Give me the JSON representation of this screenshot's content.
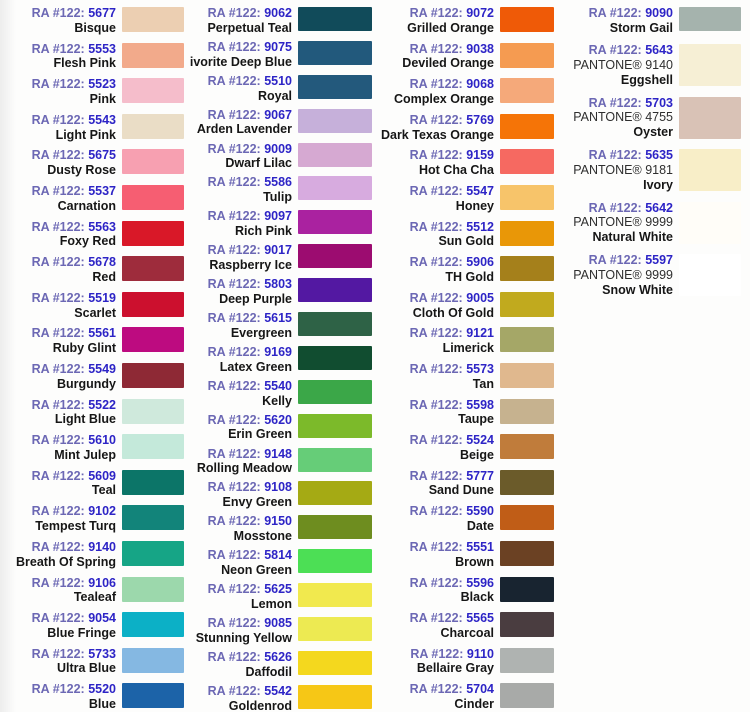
{
  "labels": {
    "ra_prefix": "RA #122:"
  },
  "text_colors": {
    "prefix": "#6c68b4",
    "number": "#2d24c6",
    "name": "#161616",
    "pantone": "#2e2e2e"
  },
  "columns": [
    {
      "id": "column-1",
      "rows": [
        {
          "number": "5677",
          "name": "Bisque",
          "swatch": "#eccfb2"
        },
        {
          "number": "5553",
          "name": "Flesh Pink",
          "swatch": "#f2aa8b"
        },
        {
          "number": "5523",
          "name": "Pink",
          "swatch": "#f5bdcb"
        },
        {
          "number": "5543",
          "name": "Light Pink",
          "swatch": "#eaddc6"
        },
        {
          "number": "5675",
          "name": "Dusty Rose",
          "swatch": "#f7a0b1"
        },
        {
          "number": "5537",
          "name": "Carnation",
          "swatch": "#f65e72"
        },
        {
          "number": "5563",
          "name": "Foxy Red",
          "swatch": "#d91828"
        },
        {
          "number": "5678",
          "name": "Red",
          "swatch": "#9e2c3c"
        },
        {
          "number": "5519",
          "name": "Scarlet",
          "swatch": "#cc102e"
        },
        {
          "number": "5561",
          "name": "Ruby Glint",
          "swatch": "#bd0b80"
        },
        {
          "number": "5549",
          "name": "Burgundy",
          "swatch": "#8e2935"
        },
        {
          "number": "5522",
          "name": "Light Blue",
          "swatch": "#cfe9dc"
        },
        {
          "number": "5610",
          "name": "Mint Julep",
          "swatch": "#c4e9da"
        },
        {
          "number": "5609",
          "name": "Teal",
          "swatch": "#0c7568"
        },
        {
          "number": "9102",
          "name": "Tempest Turq",
          "swatch": "#12847a"
        },
        {
          "number": "9140",
          "name": "Breath Of Spring",
          "swatch": "#16a586"
        },
        {
          "number": "9106",
          "name": "Tealeaf",
          "swatch": "#9cd8ac"
        },
        {
          "number": "9054",
          "name": "Blue Fringe",
          "swatch": "#0cb0c6"
        },
        {
          "number": "5733",
          "name": "Ultra Blue",
          "swatch": "#85b8e2"
        },
        {
          "number": "5520",
          "name": "Blue",
          "swatch": "#1c63a8"
        }
      ]
    },
    {
      "id": "column-2",
      "rows": [
        {
          "number": "9062",
          "name": "Perpetual Teal",
          "swatch": "#114b5a"
        },
        {
          "number": "9075",
          "name": "ivorite Deep Blue",
          "swatch": "#22597c"
        },
        {
          "number": "5510",
          "name": "Royal",
          "swatch": "#23597c"
        },
        {
          "number": "9067",
          "name": "Arden Lavender",
          "swatch": "#c6b0da"
        },
        {
          "number": "9009",
          "name": "Dwarf Lilac",
          "swatch": "#d6a9d2"
        },
        {
          "number": "5586",
          "name": "Tulip",
          "swatch": "#d7abdf"
        },
        {
          "number": "9097",
          "name": "Rich Pink",
          "swatch": "#aa22a0"
        },
        {
          "number": "9017",
          "name": "Raspberry Ice",
          "swatch": "#9c0c70"
        },
        {
          "number": "5803",
          "name": "Deep Purple",
          "swatch": "#5318a2"
        },
        {
          "number": "5615",
          "name": "Evergreen",
          "swatch": "#2e6246"
        },
        {
          "number": "9169",
          "name": "Latex Green",
          "swatch": "#114d30"
        },
        {
          "number": "5540",
          "name": "Kelly",
          "swatch": "#3ba748"
        },
        {
          "number": "5620",
          "name": "Erin Green",
          "swatch": "#7cba2a"
        },
        {
          "number": "9148",
          "name": "Rolling Meadow",
          "swatch": "#66cd78"
        },
        {
          "number": "9108",
          "name": "Envy Green",
          "swatch": "#a5aa14"
        },
        {
          "number": "9150",
          "name": "Mosstone",
          "swatch": "#6e8d1f"
        },
        {
          "number": "5814",
          "name": "Neon Green",
          "swatch": "#4cdf55"
        },
        {
          "number": "5625",
          "name": "Lemon",
          "swatch": "#f1e94e"
        },
        {
          "number": "9085",
          "name": "Stunning Yellow",
          "swatch": "#edea52"
        },
        {
          "number": "5626",
          "name": "Daffodil",
          "swatch": "#f4d81e"
        },
        {
          "number": "5542",
          "name": "Goldenrod",
          "swatch": "#f6c716"
        }
      ]
    },
    {
      "id": "column-3",
      "rows": [
        {
          "number": "9072",
          "name": "Grilled Orange",
          "swatch": "#ef5a07"
        },
        {
          "number": "9038",
          "name": "Deviled Orange",
          "swatch": "#f59b51"
        },
        {
          "number": "9068",
          "name": "Complex Orange",
          "swatch": "#f5a97a"
        },
        {
          "number": "5769",
          "name": "Dark Texas Orange",
          "swatch": "#f57407"
        },
        {
          "number": "9159",
          "name": "Hot Cha Cha",
          "swatch": "#f66961"
        },
        {
          "number": "5547",
          "name": "Honey",
          "swatch": "#f7c46a"
        },
        {
          "number": "5512",
          "name": "Sun Gold",
          "swatch": "#e99707"
        },
        {
          "number": "5906",
          "name": "TH Gold",
          "swatch": "#a5801b"
        },
        {
          "number": "9005",
          "name": "Cloth Of Gold",
          "swatch": "#c1aa1e"
        },
        {
          "number": "9121",
          "name": "Limerick",
          "swatch": "#a5a767"
        },
        {
          "number": "5573",
          "name": "Tan",
          "swatch": "#e0b88e"
        },
        {
          "number": "5598",
          "name": "Taupe",
          "swatch": "#c6b28f"
        },
        {
          "number": "5524",
          "name": "Beige",
          "swatch": "#c07c3b"
        },
        {
          "number": "5777",
          "name": "Sand Dune",
          "swatch": "#6b5b2a"
        },
        {
          "number": "5590",
          "name": "Date",
          "swatch": "#c05d17"
        },
        {
          "number": "5551",
          "name": "Brown",
          "swatch": "#6b4123"
        },
        {
          "number": "5596",
          "name": "Black",
          "swatch": "#182430"
        },
        {
          "number": "5565",
          "name": "Charcoal",
          "swatch": "#4a3d40"
        },
        {
          "number": "9110",
          "name": "Bellaire Gray",
          "swatch": "#afb3b1"
        },
        {
          "number": "5704",
          "name": "Cinder",
          "swatch": "#a8aaa8"
        }
      ]
    },
    {
      "id": "column-4",
      "rows": [
        {
          "number": "9090",
          "name": "Storm Gail",
          "swatch": "#a5b3ad"
        },
        {
          "number": "5643",
          "pantone": "PANTONE® 9140",
          "name": "Eggshell",
          "swatch": "#f6efd5"
        },
        {
          "number": "5703",
          "pantone": "PANTONE® 4755",
          "name": "Oyster",
          "swatch": "#d9c2b6"
        },
        {
          "number": "5635",
          "pantone": "PANTONE® 9181",
          "name": "Ivory",
          "swatch": "#f8eec8"
        },
        {
          "number": "5642",
          "pantone": "PANTONE® 9999",
          "name": "Natural White",
          "swatch": "#fffdf8"
        },
        {
          "number": "5597",
          "pantone": "PANTONE® 9999",
          "name": "Snow White",
          "swatch": "#ffffff"
        }
      ]
    }
  ]
}
